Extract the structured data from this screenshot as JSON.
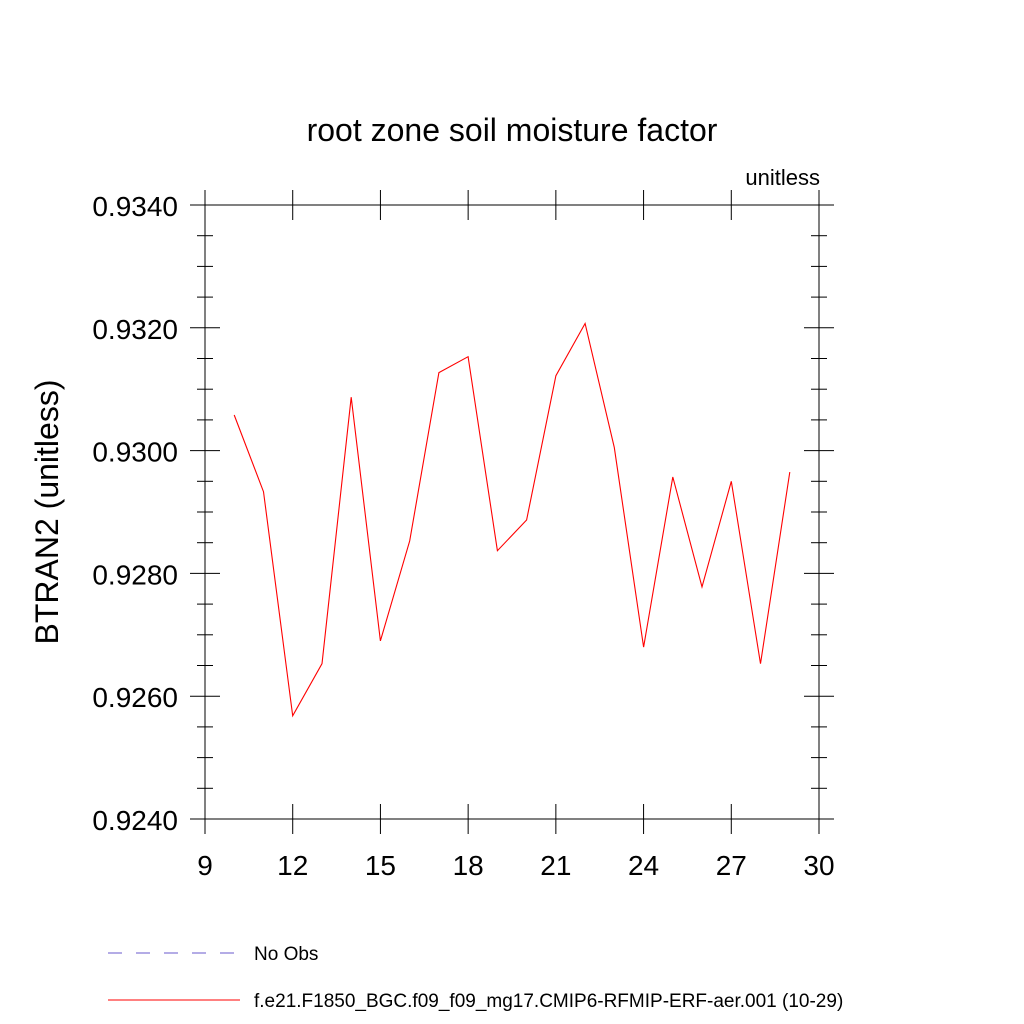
{
  "chart_data": {
    "type": "line",
    "title": "root zone soil moisture factor",
    "units": "unitless",
    "ylabel": "BTRAN2  (unitless)",
    "xlabel": "",
    "xlim": [
      9,
      30
    ],
    "ylim": [
      0.924,
      0.934
    ],
    "xticks": [
      9,
      12,
      15,
      18,
      21,
      24,
      27,
      30
    ],
    "xtick_labels": [
      "9",
      "12",
      "15",
      "18",
      "21",
      "24",
      "27",
      "30"
    ],
    "yticks": [
      0.924,
      0.926,
      0.928,
      0.93,
      0.932,
      0.934
    ],
    "ytick_labels": [
      "0.9240",
      "0.9260",
      "0.9280",
      "0.9300",
      "0.9320",
      "0.9340"
    ],
    "grid": false,
    "legend_position": "bottom",
    "series": [
      {
        "name": "f.e21.F1850_BGC.f09_f09_mg17.CMIP6-RFMIP-ERF-aer.001 (10-29)",
        "color": "#ff0000",
        "x": [
          10,
          11,
          12,
          13,
          14,
          15,
          16,
          17,
          18,
          19,
          20,
          21,
          22,
          23,
          24,
          25,
          26,
          27,
          28,
          29
        ],
        "values": [
          0.93058,
          0.92933,
          0.92568,
          0.92653,
          0.93087,
          0.9269,
          0.92853,
          0.93127,
          0.93153,
          0.92837,
          0.92887,
          0.93122,
          0.93207,
          0.93005,
          0.9268,
          0.92957,
          0.92778,
          0.9295,
          0.92653,
          0.92965
        ]
      }
    ],
    "legend": [
      {
        "label": "No Obs",
        "color": "#6a5acd",
        "style": "dashed"
      },
      {
        "label": "f.e21.F1850_BGC.f09_f09_mg17.CMIP6-RFMIP-ERF-aer.001 (10-29)",
        "color": "#ff0000",
        "style": "solid"
      }
    ]
  }
}
